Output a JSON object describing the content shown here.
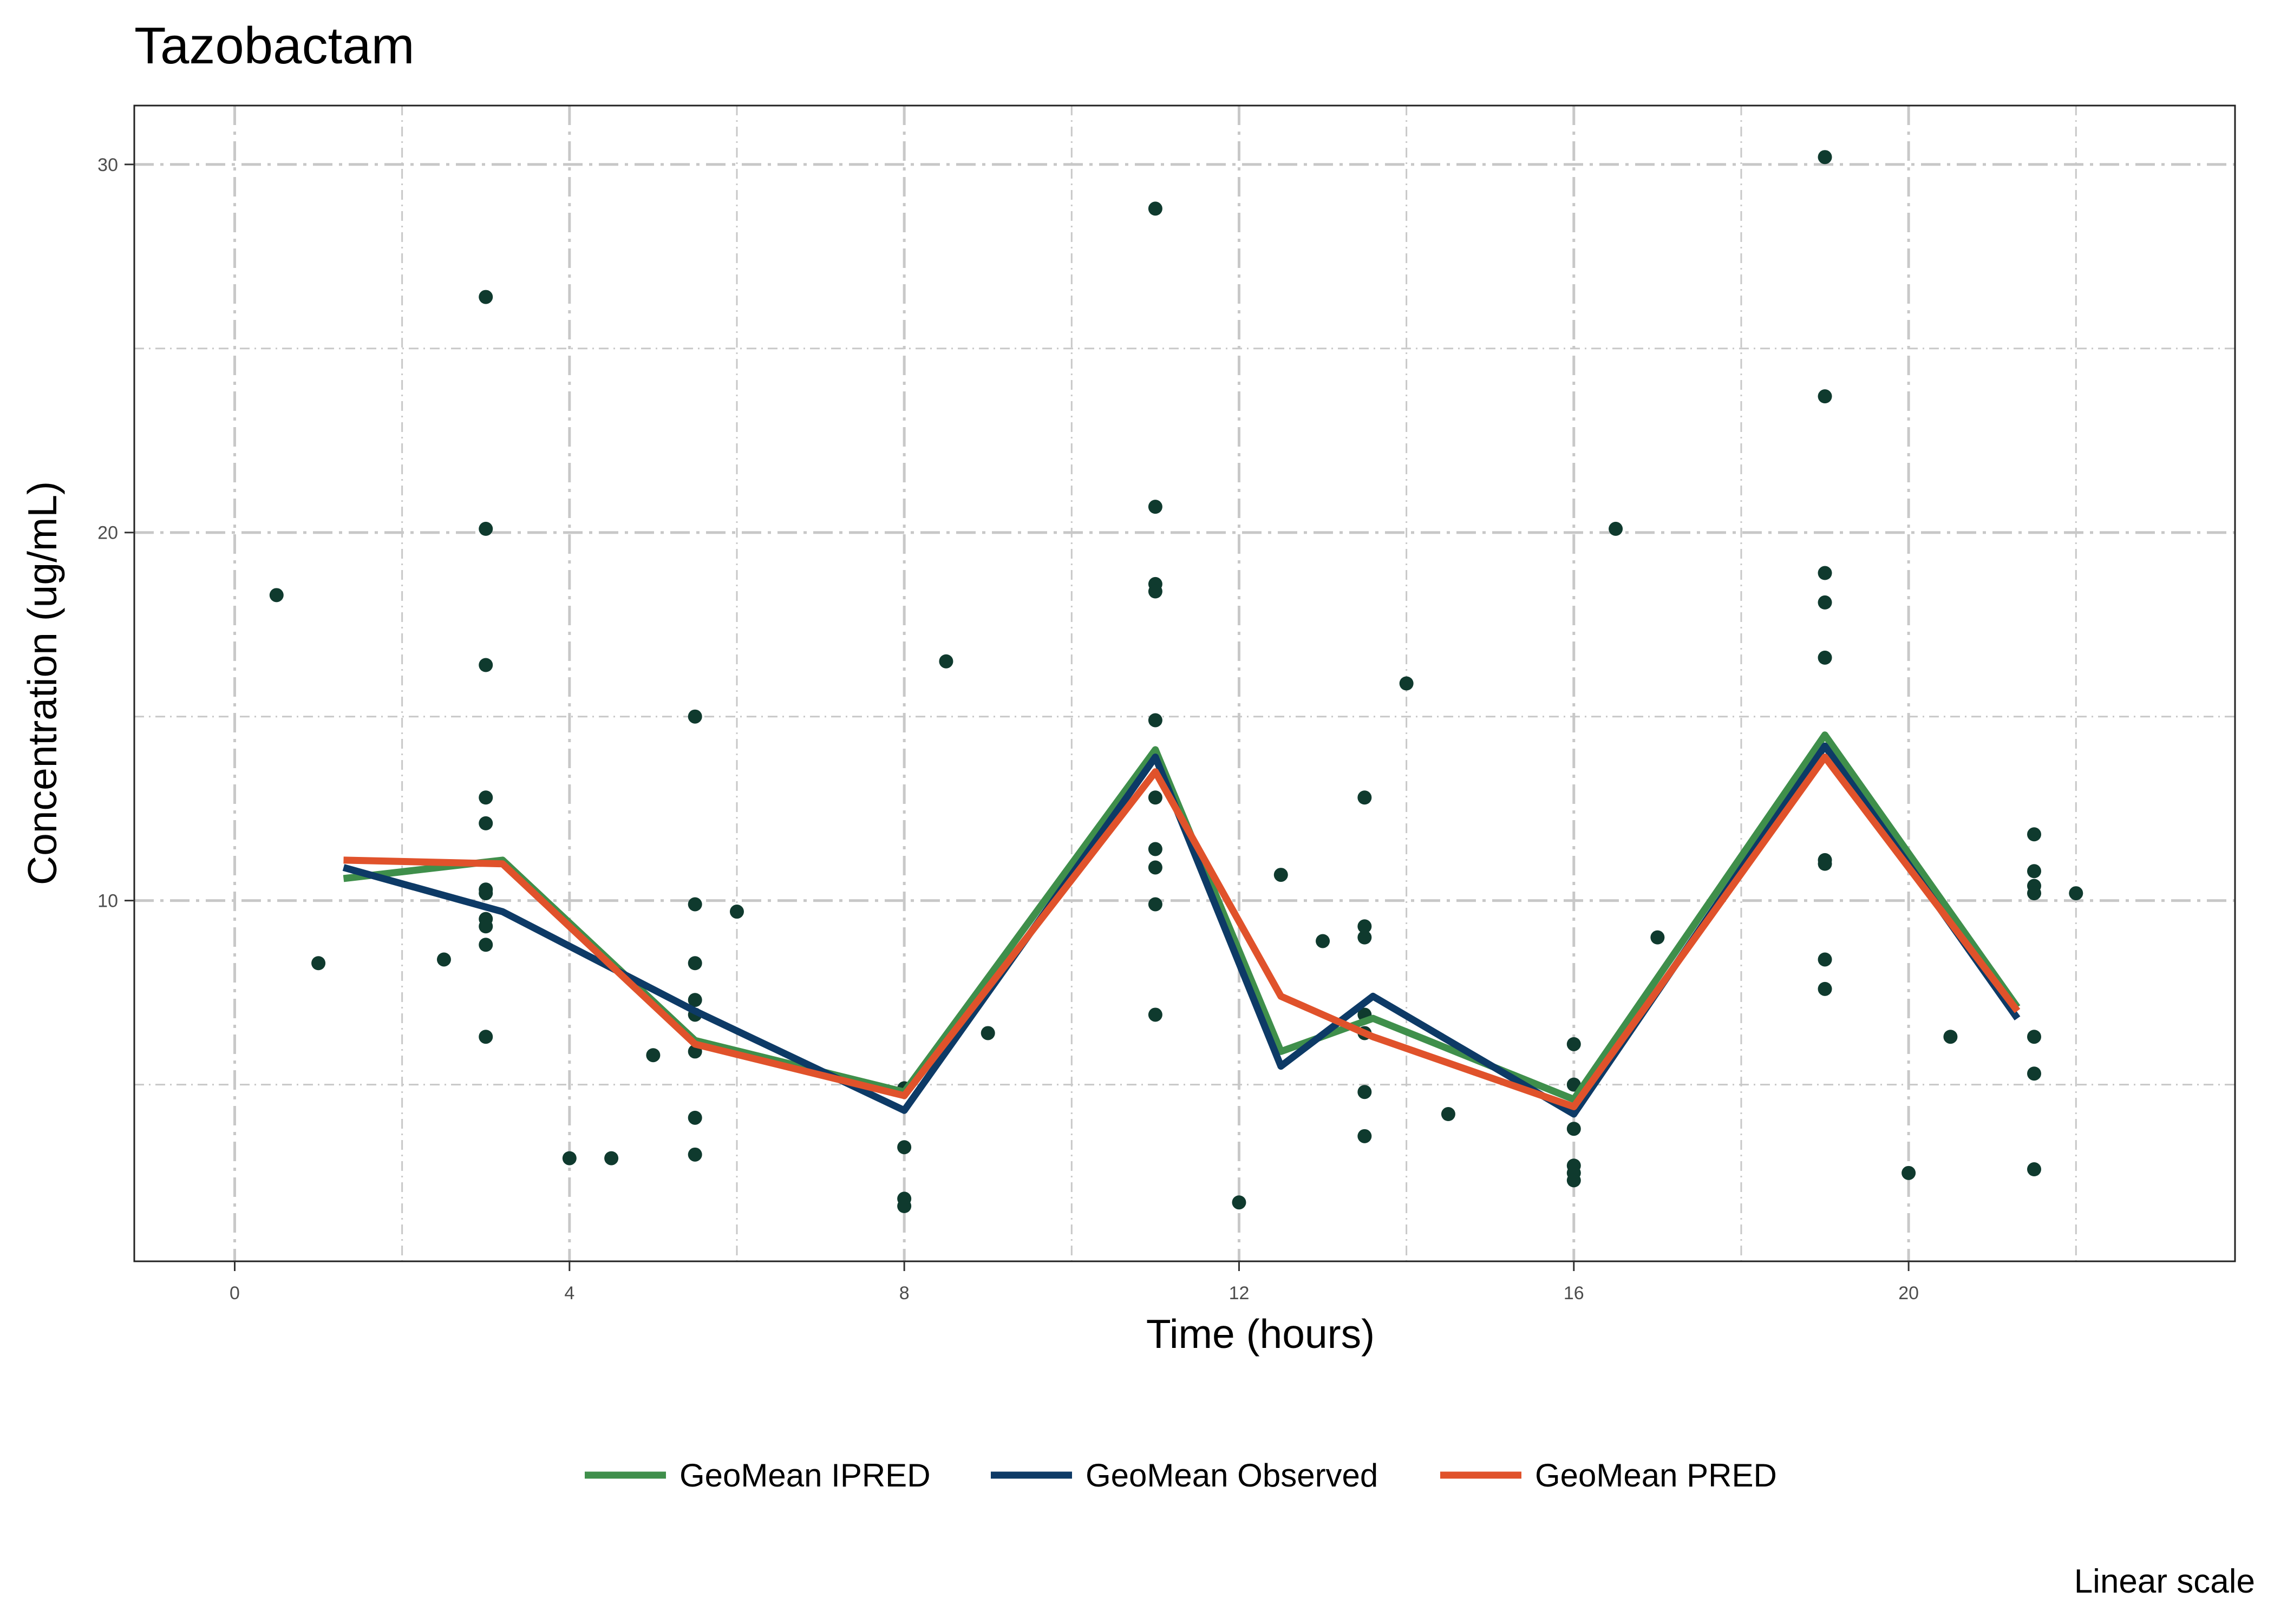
{
  "chart_data": {
    "type": "line",
    "title": "Tazobactam",
    "xlabel": "Time (hours)",
    "ylabel": "Concentration (ug/mL)",
    "caption": "Linear scale",
    "xlim": [
      -1.2,
      23.9
    ],
    "ylim": [
      0.2,
      31.6
    ],
    "x_ticks": [
      0,
      4,
      8,
      12,
      16,
      20
    ],
    "x_tick_labels": [
      "0",
      "4",
      "8",
      "12",
      "16",
      "20"
    ],
    "x_minor_ticks": [
      2,
      6,
      10,
      14,
      18,
      22
    ],
    "y_ticks": [
      10,
      20,
      30
    ],
    "y_tick_labels": [
      "10",
      "20",
      "30"
    ],
    "y_minor_ticks": [
      5,
      15,
      25
    ],
    "grid": true,
    "legend_position": "bottom",
    "colors": {
      "ipred": "#3f8f4b",
      "observed": "#0d3a66",
      "pred": "#e0522b",
      "points": "#0f3a2e",
      "grid": "#c8c8c8"
    },
    "series": [
      {
        "name": "GeoMean IPRED",
        "color": "#3f8f4b",
        "x": [
          1.3,
          3.2,
          5.5,
          8.0,
          11.0,
          12.5,
          13.6,
          16.0,
          19.0,
          21.3
        ],
        "y": [
          10.6,
          11.1,
          6.2,
          4.8,
          14.1,
          5.9,
          6.8,
          4.6,
          14.5,
          7.1
        ]
      },
      {
        "name": "GeoMean Observed",
        "color": "#0d3a66",
        "x": [
          1.3,
          3.2,
          5.5,
          8.0,
          11.0,
          12.5,
          13.6,
          16.0,
          19.0,
          21.3
        ],
        "y": [
          10.9,
          9.7,
          7.0,
          4.3,
          13.9,
          5.5,
          7.4,
          4.2,
          14.2,
          6.8
        ]
      },
      {
        "name": "GeoMean PRED",
        "color": "#e0522b",
        "x": [
          1.3,
          3.2,
          5.5,
          8.0,
          11.0,
          12.5,
          13.6,
          16.0,
          19.0,
          21.3
        ],
        "y": [
          11.1,
          11.0,
          6.1,
          4.7,
          13.5,
          7.4,
          6.3,
          4.4,
          13.9,
          7.0
        ]
      }
    ],
    "points": [
      {
        "x": 0.5,
        "y": 18.3
      },
      {
        "x": 1.0,
        "y": 8.3
      },
      {
        "x": 2.5,
        "y": 8.4
      },
      {
        "x": 3.0,
        "y": 26.4
      },
      {
        "x": 3.0,
        "y": 20.1
      },
      {
        "x": 3.0,
        "y": 16.4
      },
      {
        "x": 3.0,
        "y": 12.8
      },
      {
        "x": 3.0,
        "y": 12.1
      },
      {
        "x": 3.0,
        "y": 10.3
      },
      {
        "x": 3.0,
        "y": 10.2
      },
      {
        "x": 3.0,
        "y": 9.5
      },
      {
        "x": 3.0,
        "y": 9.3
      },
      {
        "x": 3.0,
        "y": 8.8
      },
      {
        "x": 3.0,
        "y": 6.3
      },
      {
        "x": 4.0,
        "y": 3.0
      },
      {
        "x": 4.5,
        "y": 3.0
      },
      {
        "x": 5.0,
        "y": 5.8
      },
      {
        "x": 5.5,
        "y": 15.0
      },
      {
        "x": 5.5,
        "y": 9.9
      },
      {
        "x": 5.5,
        "y": 8.3
      },
      {
        "x": 5.5,
        "y": 7.3
      },
      {
        "x": 5.5,
        "y": 6.9
      },
      {
        "x": 5.5,
        "y": 5.9
      },
      {
        "x": 5.5,
        "y": 4.1
      },
      {
        "x": 5.5,
        "y": 3.1
      },
      {
        "x": 6.0,
        "y": 9.7
      },
      {
        "x": 8.0,
        "y": 4.9
      },
      {
        "x": 8.0,
        "y": 3.3
      },
      {
        "x": 8.0,
        "y": 1.9
      },
      {
        "x": 8.0,
        "y": 1.7
      },
      {
        "x": 8.5,
        "y": 16.5
      },
      {
        "x": 9.0,
        "y": 6.4
      },
      {
        "x": 11.0,
        "y": 28.8
      },
      {
        "x": 11.0,
        "y": 20.7
      },
      {
        "x": 11.0,
        "y": 18.6
      },
      {
        "x": 11.0,
        "y": 18.4
      },
      {
        "x": 11.0,
        "y": 14.9
      },
      {
        "x": 11.0,
        "y": 12.8
      },
      {
        "x": 11.0,
        "y": 11.4
      },
      {
        "x": 11.0,
        "y": 10.9
      },
      {
        "x": 11.0,
        "y": 9.9
      },
      {
        "x": 11.0,
        "y": 6.9
      },
      {
        "x": 12.0,
        "y": 1.8
      },
      {
        "x": 12.5,
        "y": 10.7
      },
      {
        "x": 13.0,
        "y": 8.9
      },
      {
        "x": 13.5,
        "y": 12.8
      },
      {
        "x": 13.5,
        "y": 9.3
      },
      {
        "x": 13.5,
        "y": 9.0
      },
      {
        "x": 13.5,
        "y": 6.9
      },
      {
        "x": 13.5,
        "y": 6.4
      },
      {
        "x": 13.5,
        "y": 4.8
      },
      {
        "x": 13.5,
        "y": 3.6
      },
      {
        "x": 14.0,
        "y": 15.9
      },
      {
        "x": 14.5,
        "y": 4.2
      },
      {
        "x": 16.0,
        "y": 6.1
      },
      {
        "x": 16.0,
        "y": 5.0
      },
      {
        "x": 16.0,
        "y": 3.8
      },
      {
        "x": 16.0,
        "y": 2.8
      },
      {
        "x": 16.0,
        "y": 2.6
      },
      {
        "x": 16.0,
        "y": 2.4
      },
      {
        "x": 16.5,
        "y": 20.1
      },
      {
        "x": 17.0,
        "y": 9.0
      },
      {
        "x": 19.0,
        "y": 30.2
      },
      {
        "x": 19.0,
        "y": 23.7
      },
      {
        "x": 19.0,
        "y": 18.9
      },
      {
        "x": 19.0,
        "y": 18.1
      },
      {
        "x": 19.0,
        "y": 16.6
      },
      {
        "x": 19.0,
        "y": 11.1
      },
      {
        "x": 19.0,
        "y": 11.0
      },
      {
        "x": 19.0,
        "y": 8.4
      },
      {
        "x": 19.0,
        "y": 7.6
      },
      {
        "x": 20.0,
        "y": 2.6
      },
      {
        "x": 20.5,
        "y": 6.3
      },
      {
        "x": 21.5,
        "y": 11.8
      },
      {
        "x": 21.5,
        "y": 10.8
      },
      {
        "x": 21.5,
        "y": 10.4
      },
      {
        "x": 21.5,
        "y": 10.2
      },
      {
        "x": 21.5,
        "y": 6.3
      },
      {
        "x": 21.5,
        "y": 5.3
      },
      {
        "x": 21.5,
        "y": 2.7
      },
      {
        "x": 22.0,
        "y": 10.2
      }
    ]
  }
}
